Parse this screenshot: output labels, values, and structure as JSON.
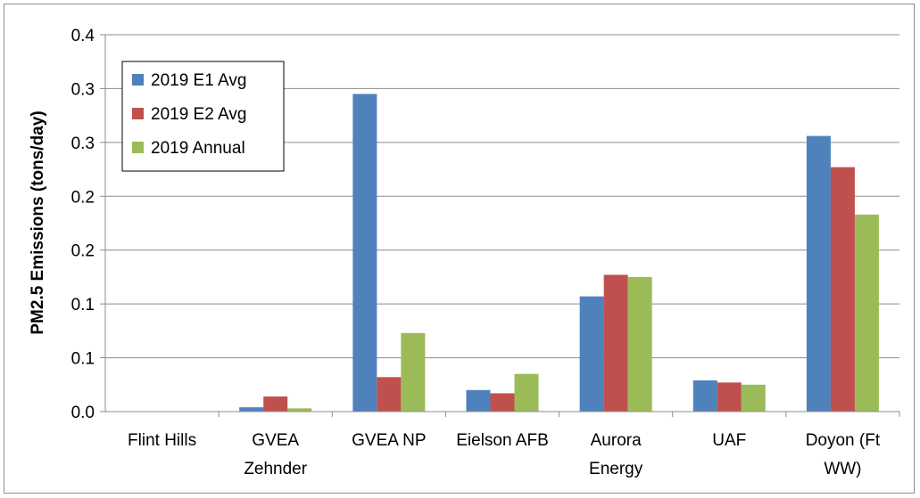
{
  "chart_data": {
    "type": "bar",
    "title": "",
    "xlabel": "",
    "ylabel": "PM2.5 Emissions (tons/day)",
    "ylim": [
      0,
      0.35
    ],
    "y_tick_values": [
      0,
      0.05,
      0.1,
      0.15,
      0.2,
      0.25,
      0.3,
      0.35
    ],
    "y_tick_labels": [
      "0.0",
      "0.1",
      "0.1",
      "0.2",
      "0.2",
      "0.3",
      "0.3",
      "0.4"
    ],
    "grid": true,
    "legend_position": "top-left",
    "categories": [
      [
        "Flint Hills"
      ],
      [
        "GVEA",
        "Zehnder"
      ],
      [
        "GVEA NP"
      ],
      [
        "Eielson AFB"
      ],
      [
        "Aurora",
        "Energy"
      ],
      [
        "UAF"
      ],
      [
        "Doyon (Ft",
        "WW)"
      ]
    ],
    "series": [
      {
        "name": "2019 E1 Avg",
        "color": "#4f81bd",
        "values": [
          0.0,
          0.004,
          0.295,
          0.02,
          0.107,
          0.029,
          0.256
        ]
      },
      {
        "name": "2019 E2 Avg",
        "color": "#c0504d",
        "values": [
          0.0,
          0.014,
          0.032,
          0.017,
          0.127,
          0.027,
          0.227
        ]
      },
      {
        "name": "2019 Annual",
        "color": "#9bbb59",
        "values": [
          0.0,
          0.003,
          0.073,
          0.035,
          0.125,
          0.025,
          0.183
        ]
      }
    ]
  }
}
